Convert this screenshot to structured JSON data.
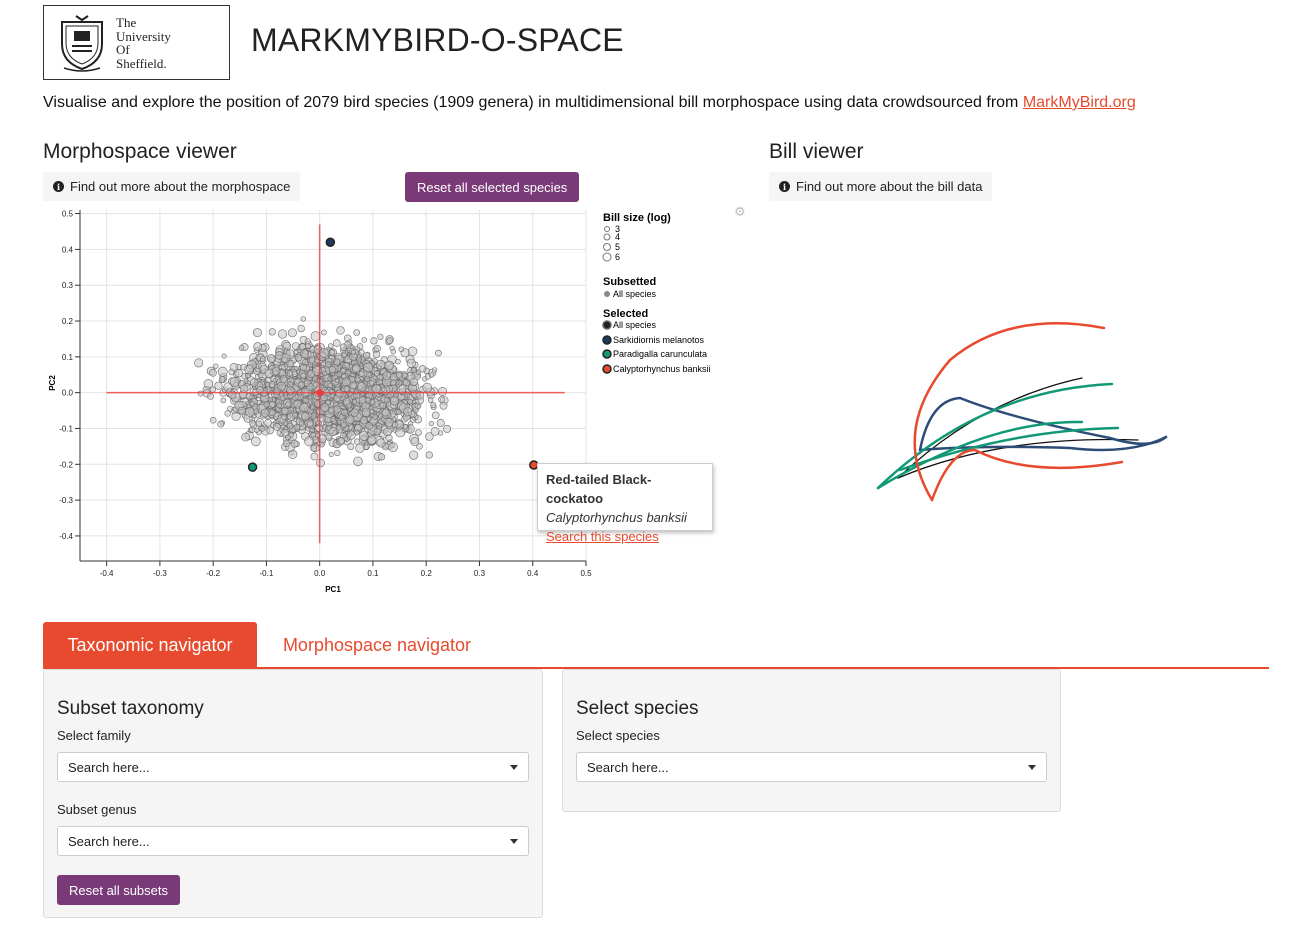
{
  "header": {
    "logo_text": [
      "The",
      "University",
      "Of",
      "Sheffield."
    ],
    "title": "MARKMYBIRD-O-SPACE"
  },
  "intro": {
    "text": "Visualise and explore the position of 2079 bird species (1909 genera) in multidimensional bill morphospace using data crowdsourced from ",
    "link_text": "MarkMyBird.org"
  },
  "morphospace": {
    "heading": "Morphospace viewer",
    "info_button": "Find out more about the morphospace",
    "reset_button": "Reset all selected species"
  },
  "bill_viewer": {
    "heading": "Bill viewer",
    "info_button": "Find out more about the bill data"
  },
  "tooltip": {
    "common_name": "Red-tailed Black-cockatoo",
    "scientific_name": "Calyptorhynchus banksii",
    "link": "Search this species"
  },
  "legend": {
    "size_title": "Bill size (log)",
    "size_items": [
      "3",
      "4",
      "5",
      "6"
    ],
    "subset_title": "Subsetted",
    "subset_items": [
      "All species"
    ],
    "selected_title": "Selected",
    "selected_items": [
      {
        "label": "All species",
        "color": "#222222"
      },
      {
        "label": "Sarkidiornis melanotos",
        "color": "#1f3a5f"
      },
      {
        "label": "Paradigalla carunculata",
        "color": "#119977"
      },
      {
        "label": "Calyptorhynchus banksii",
        "color": "#e84a2f"
      }
    ]
  },
  "tabs": [
    {
      "label": "Taxonomic navigator",
      "active": true
    },
    {
      "label": "Morphospace navigator",
      "active": false
    }
  ],
  "subset_panel": {
    "heading": "Subset taxonomy",
    "family_label": "Select family",
    "family_value": "Search here...",
    "genus_label": "Subset genus",
    "genus_value": "Search here...",
    "reset_button": "Reset all subsets"
  },
  "species_panel": {
    "heading": "Select species",
    "species_label": "Select species",
    "species_value": "Search here..."
  },
  "colors": {
    "accent": "#e84a2f",
    "purple": "#7a3a77",
    "navy": "#1f3a5f",
    "teal": "#119977"
  },
  "chart_data": {
    "type": "scatter",
    "xlabel": "PC1",
    "ylabel": "PC2",
    "xlim": [
      -0.45,
      0.5
    ],
    "ylim": [
      -0.47,
      0.51
    ],
    "xticks": [
      -0.4,
      -0.3,
      -0.2,
      -0.1,
      0.0,
      0.1,
      0.2,
      0.3,
      0.4,
      0.5
    ],
    "yticks": [
      0.5,
      0.4,
      0.3,
      0.2,
      0.1,
      0.0,
      -0.1,
      -0.2,
      -0.3,
      -0.4
    ],
    "grid": true,
    "n_points": 2079,
    "crosshair": {
      "x": 0.0,
      "y": 0.0,
      "x_range": [
        -0.4,
        0.46
      ],
      "y_range": [
        -0.42,
        0.47
      ]
    },
    "selected_points": [
      {
        "name": "Sarkidiornis melanotos",
        "x": 0.02,
        "y": 0.42,
        "color": "#1f3a5f"
      },
      {
        "name": "Paradigalla carunculata",
        "x": -0.126,
        "y": -0.208,
        "color": "#119977"
      },
      {
        "name": "Calyptorhynchus banksii",
        "x": 0.402,
        "y": -0.202,
        "color": "#e84a2f"
      }
    ]
  }
}
